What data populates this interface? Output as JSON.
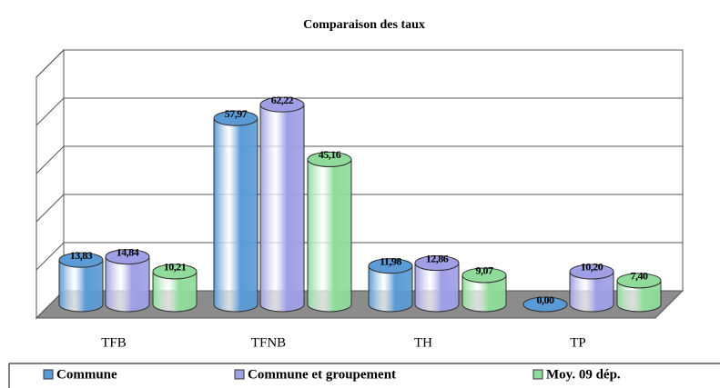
{
  "chart_data": {
    "type": "bar3d",
    "title": "Comparaison des taux",
    "categories": [
      "TFB",
      "TFNB",
      "TH",
      "TP"
    ],
    "series": [
      {
        "name": "Commune",
        "color": "#5b9bd5",
        "values": [
          13.83,
          57.97,
          11.98,
          0.0
        ],
        "value_labels": [
          "13,83",
          "57,97",
          "11,98",
          "0,00"
        ]
      },
      {
        "name": "Commune et groupement",
        "color": "#9f9fe6",
        "values": [
          14.84,
          62.22,
          12.86,
          10.2
        ],
        "value_labels": [
          "14,84",
          "62,22",
          "12,86",
          "10,20"
        ]
      },
      {
        "name": "Moy. 09 dép.",
        "color": "#8fdc9a",
        "values": [
          10.21,
          45.16,
          9.07,
          7.4
        ],
        "value_labels": [
          "10,21",
          "45,16",
          "9,07",
          "7,40"
        ]
      }
    ],
    "ylim": [
      0,
      75
    ],
    "yticks": [
      0,
      15,
      30,
      45,
      60,
      75
    ],
    "grid": true,
    "legend": "bottom"
  }
}
